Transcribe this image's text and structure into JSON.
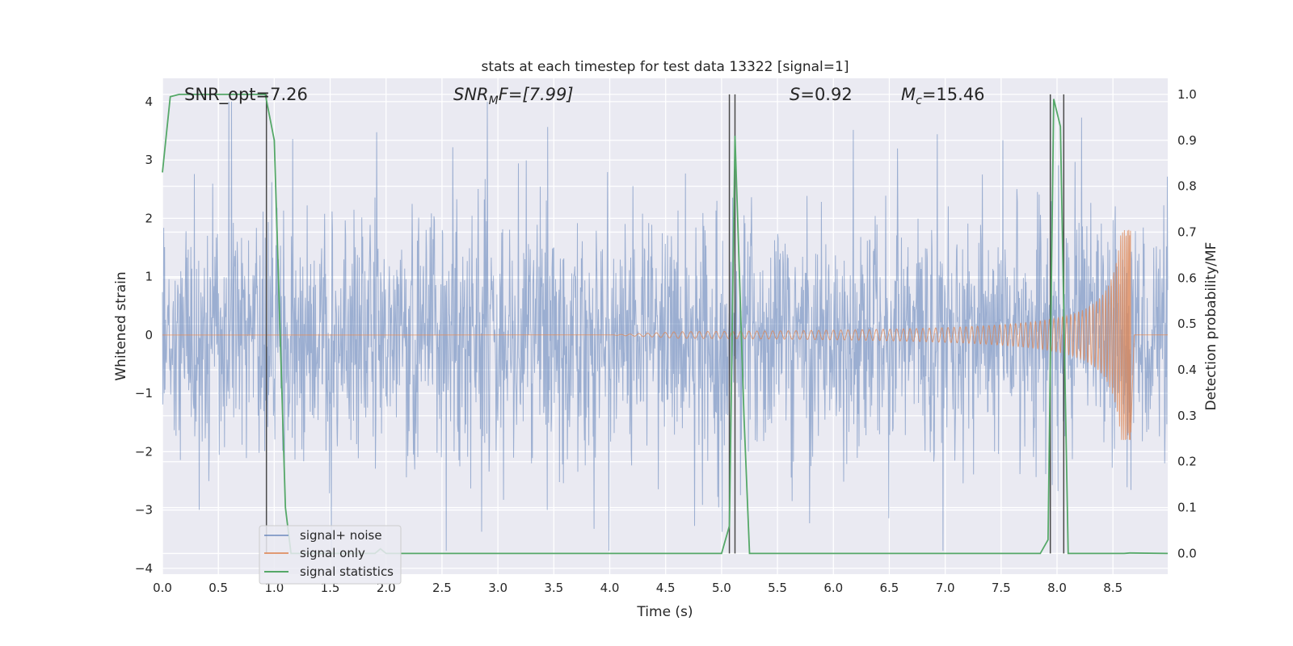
{
  "chart_data": {
    "type": "line",
    "title": "stats at each timestep for test data 13322 [signal=1]",
    "xlabel": "Time (s)",
    "ylabel_left": "Whitened strain",
    "ylabel_right": "Detection probability/MF",
    "xlim": [
      0.0,
      8.99
    ],
    "ylim_left": [
      -4.1,
      4.4
    ],
    "ylim_right": [
      -0.045,
      1.035
    ],
    "xticks": [
      "0.0",
      "0.5",
      "1.0",
      "1.5",
      "2.0",
      "2.5",
      "3.0",
      "3.5",
      "4.0",
      "4.5",
      "5.0",
      "5.5",
      "6.0",
      "6.5",
      "7.0",
      "7.5",
      "8.0",
      "8.5"
    ],
    "yticks_left": [
      "4",
      "3",
      "2",
      "1",
      "0",
      "−1",
      "−2",
      "−3",
      "−4"
    ],
    "yticks_right": [
      "1.0",
      "0.9",
      "0.8",
      "0.7",
      "0.6",
      "0.5",
      "0.4",
      "0.3",
      "0.2",
      "0.1",
      "0.0"
    ],
    "grid": true,
    "legend_position": "lower-left",
    "annotations": {
      "snr_opt": "SNR_opt=7.26",
      "snr_mf": "SNRMF=[7.99]",
      "snr_mf_base": "SNR",
      "snr_mf_sub": "M",
      "snr_mf_rest": "F=[7.99]",
      "s_stat": "S=0.92",
      "s_stat_var": "S",
      "s_stat_rest": "=0.92",
      "mc": "Mc=15.46",
      "mc_base": "M",
      "mc_sub": "c",
      "mc_rest": "=15.46"
    },
    "series": [
      {
        "name": "signal+ noise",
        "color": "#4c72b0",
        "axis": "left",
        "description_envelope": {
          "typical_peak_abs": 2.3,
          "max": 4.0,
          "min": -3.7
        }
      },
      {
        "name": "signal only",
        "color": "#dd8452",
        "axis": "left",
        "chirp": {
          "start": 4.0,
          "end": 8.66,
          "peak_amplitude": 1.8
        }
      },
      {
        "name": "signal statistics",
        "color": "#55a868",
        "axis": "right",
        "points": [
          [
            0.0,
            0.83
          ],
          [
            0.07,
            0.995
          ],
          [
            0.15,
            1.0
          ],
          [
            0.92,
            1.0
          ],
          [
            1.0,
            0.9
          ],
          [
            1.05,
            0.5
          ],
          [
            1.1,
            0.1
          ],
          [
            1.15,
            0.0
          ],
          [
            1.9,
            0.0
          ],
          [
            1.95,
            0.01
          ],
          [
            2.0,
            0.0
          ],
          [
            5.0,
            0.0
          ],
          [
            5.07,
            0.06
          ],
          [
            5.12,
            0.91
          ],
          [
            5.2,
            0.3
          ],
          [
            5.25,
            0.0
          ],
          [
            7.85,
            0.0
          ],
          [
            7.92,
            0.03
          ],
          [
            7.97,
            0.99
          ],
          [
            8.03,
            0.93
          ],
          [
            8.1,
            0.0
          ],
          [
            8.6,
            0.0
          ],
          [
            8.65,
            0.001
          ],
          [
            8.99,
            0.0
          ]
        ]
      }
    ],
    "vertical_lines": [
      0.93,
      5.07,
      5.12,
      7.94,
      8.06
    ]
  }
}
